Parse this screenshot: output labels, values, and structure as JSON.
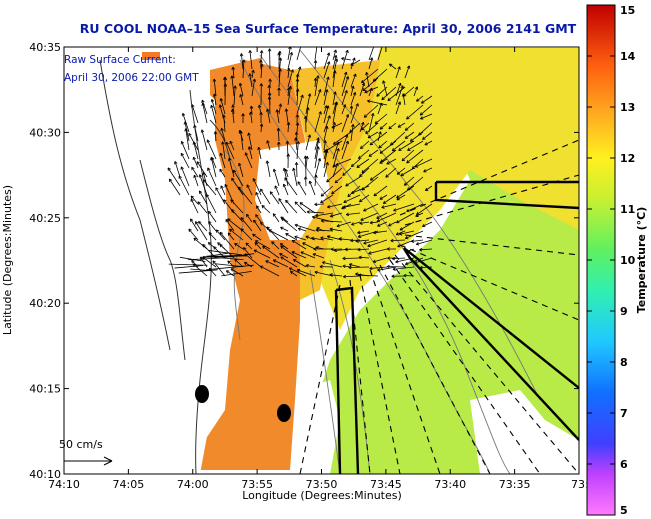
{
  "title": "RU COOL  NOAA–15  Sea Surface Temperature:  April 30, 2006 2141 GMT",
  "annotation": {
    "line1": "Raw Surface Current:",
    "line2": "April 30, 2006 22:00 GMT"
  },
  "scale_label": "50 cm/s",
  "x_axis": {
    "label": "Longitude (Degrees:Minutes)",
    "ticks": [
      "74:10",
      "74:05",
      "74:00",
      "73:55",
      "73:50",
      "73:45",
      "73:40",
      "73:35",
      "73:3"
    ]
  },
  "y_axis": {
    "label": "Latitude (Degrees:Minutes)",
    "ticks": [
      "40:10",
      "40:15",
      "40:20",
      "40:25",
      "40:30",
      "40:35"
    ]
  },
  "colorbar": {
    "label": "Temperature (°C)",
    "min": 5,
    "max": 15,
    "ticks": [
      "5",
      "6",
      "7",
      "8",
      "9",
      "10",
      "11",
      "12",
      "13",
      "14",
      "15"
    ]
  },
  "colors": {
    "title": "#0a1aa8",
    "land": "#ffffff",
    "sst_warm": "#f08a2a",
    "sst_mid": "#f5d82a",
    "sst_cool": "#a8e84a"
  }
}
